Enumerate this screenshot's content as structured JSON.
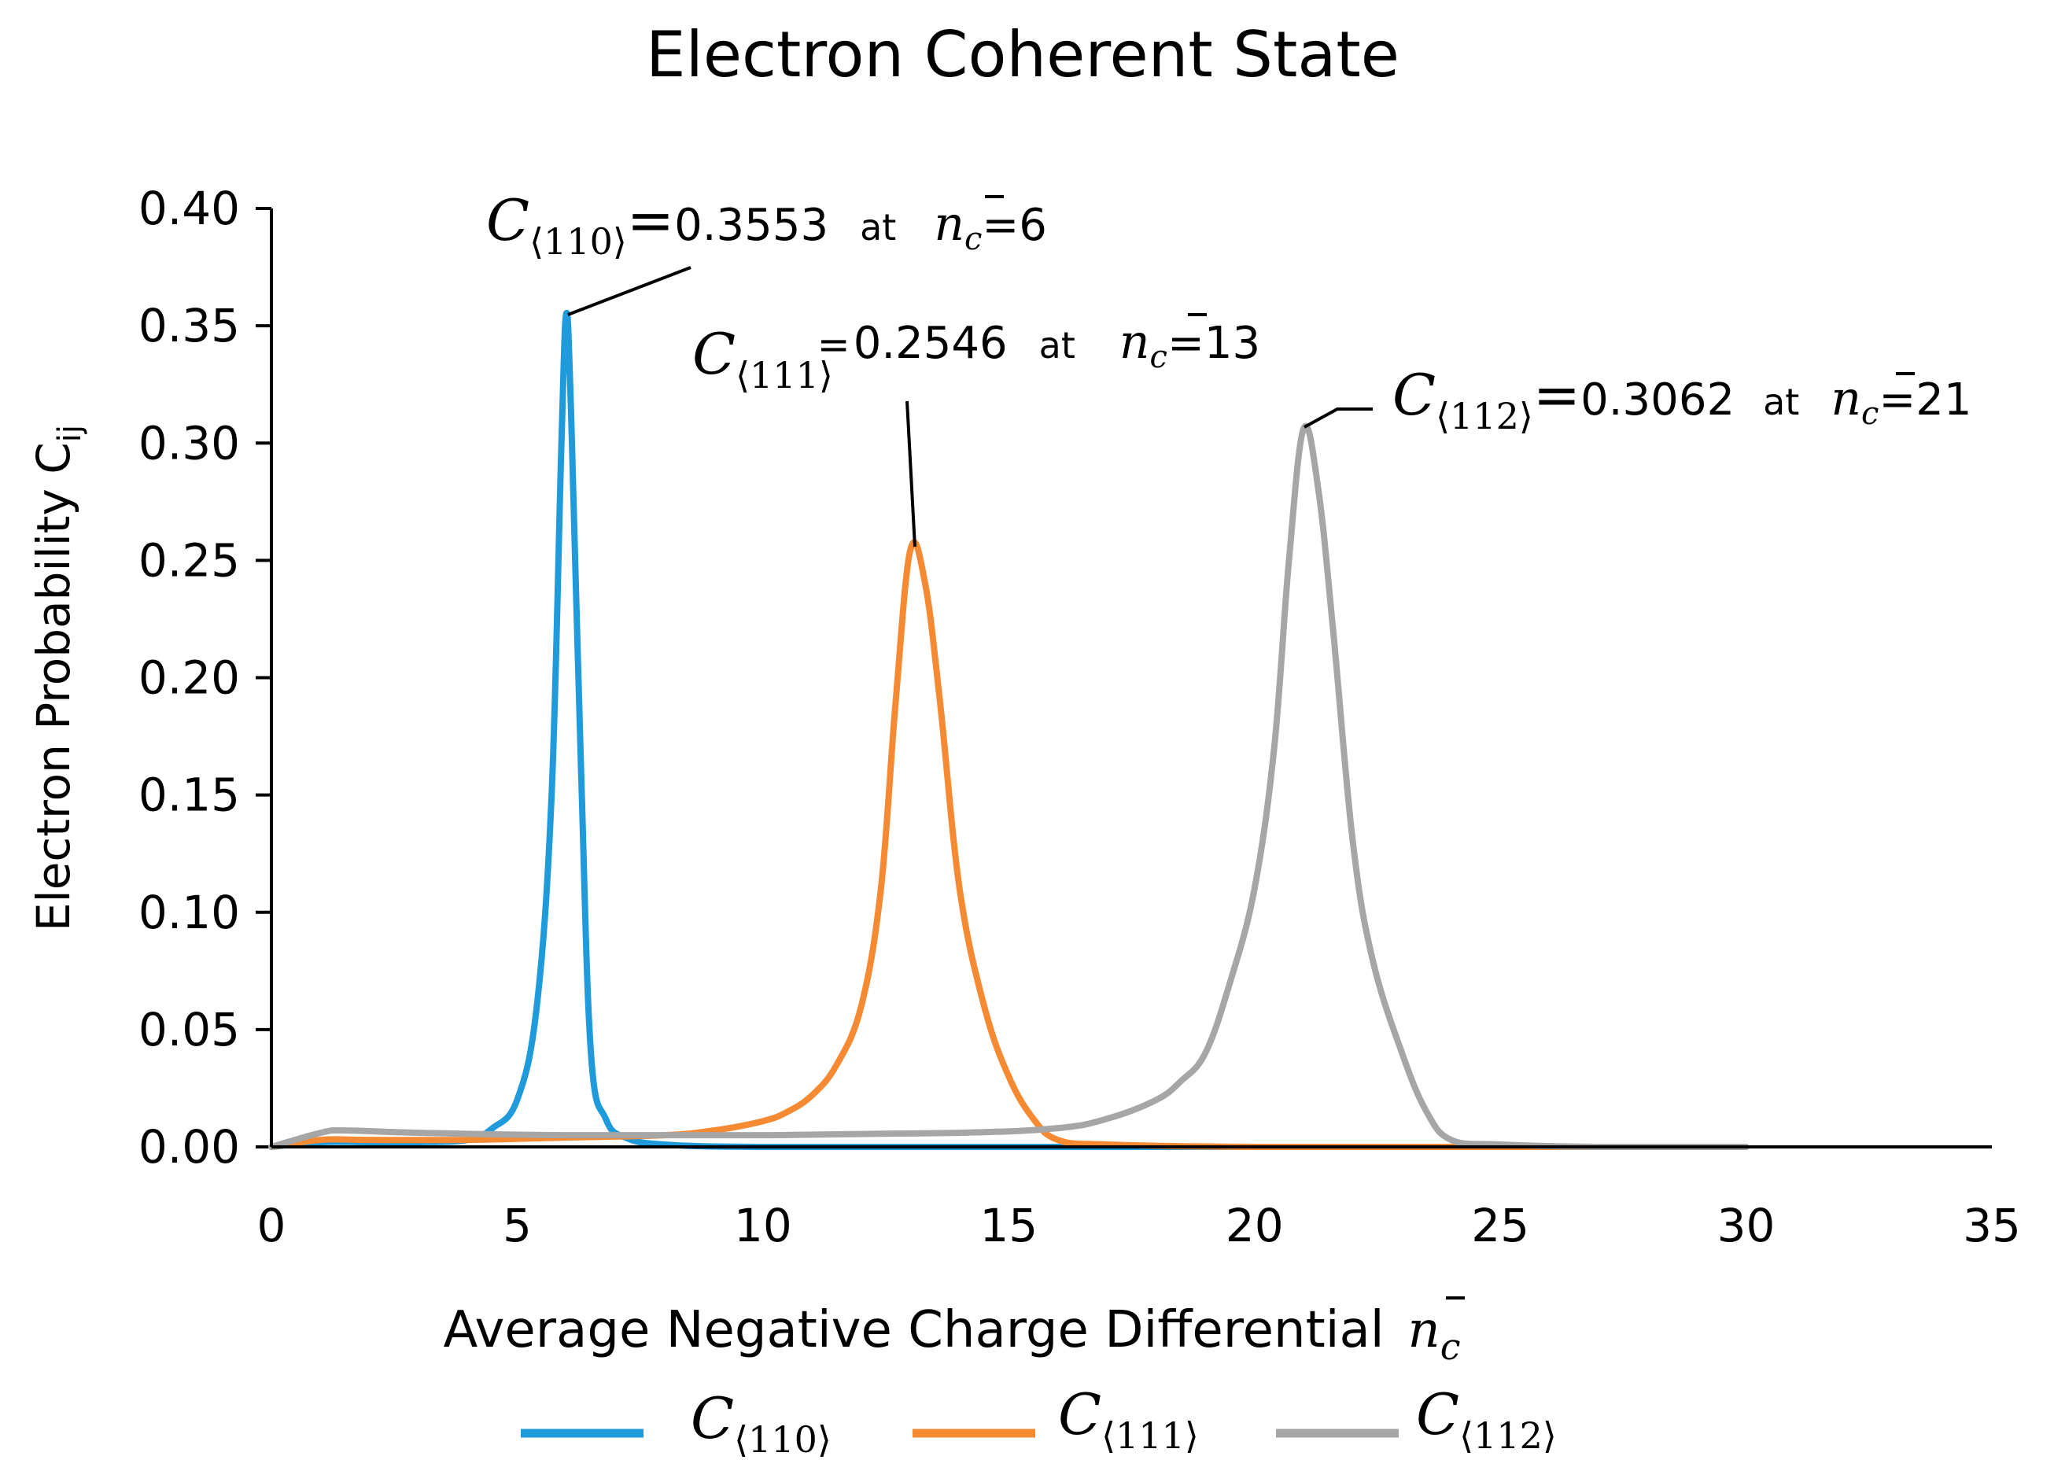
{
  "chart_data": {
    "type": "line",
    "title": "Electron Coherent State",
    "xlabel": "Average Negative Charge Differential",
    "xlabel_symbol": "n",
    "xlabel_symbol_sub": "c",
    "ylabel": "Electron Probability C",
    "ylabel_sub": "ij",
    "xlim": [
      0,
      35
    ],
    "ylim": [
      0,
      0.4
    ],
    "xticks": [
      "0",
      "5",
      "10",
      "15",
      "20",
      "25",
      "30",
      "35"
    ],
    "yticks": [
      "0.00",
      "0.05",
      "0.10",
      "0.15",
      "0.20",
      "0.25",
      "0.30",
      "0.35",
      "0.40"
    ],
    "grid": false,
    "legend_position": "bottom",
    "series": [
      {
        "name": "C⟨110⟩",
        "symbol": "C",
        "sub": "⟨110⟩",
        "color": "#1F9BDB",
        "x": [
          0,
          1,
          2,
          3,
          4,
          4.5,
          5,
          5.4,
          5.7,
          5.9,
          6.0,
          6.1,
          6.3,
          6.5,
          6.8,
          7.2,
          8,
          10,
          15,
          20,
          25,
          30
        ],
        "y": [
          0.0,
          0.002,
          0.002,
          0.002,
          0.003,
          0.008,
          0.02,
          0.06,
          0.15,
          0.3,
          0.3553,
          0.31,
          0.16,
          0.04,
          0.012,
          0.004,
          0.001,
          0.0,
          0.0,
          0.0,
          0.0,
          0.0
        ]
      },
      {
        "name": "C⟨111⟩",
        "symbol": "C",
        "sub": "⟨111⟩",
        "color": "#F58A33",
        "x": [
          0,
          1,
          2,
          4,
          6,
          8,
          9,
          10,
          10.5,
          11,
          11.5,
          12,
          12.4,
          12.7,
          13,
          13.3,
          13.6,
          14,
          14.5,
          15,
          15.5,
          16,
          17,
          20,
          25,
          30
        ],
        "y": [
          0.0,
          0.003,
          0.003,
          0.003,
          0.004,
          0.005,
          0.007,
          0.011,
          0.015,
          0.022,
          0.035,
          0.06,
          0.11,
          0.19,
          0.2546,
          0.24,
          0.19,
          0.11,
          0.06,
          0.03,
          0.012,
          0.003,
          0.001,
          0.0,
          0.0,
          0.0
        ]
      },
      {
        "name": "C⟨112⟩",
        "symbol": "C",
        "sub": "⟨112⟩",
        "color": "#A6A6A6",
        "x": [
          0,
          1,
          1.5,
          3,
          6,
          10,
          14,
          16,
          17,
          18,
          18.5,
          19,
          19.5,
          20,
          20.4,
          20.7,
          21,
          21.3,
          21.6,
          22,
          22.4,
          23,
          23.5,
          24,
          25,
          27,
          30
        ],
        "y": [
          0.0,
          0.006,
          0.007,
          0.006,
          0.005,
          0.005,
          0.006,
          0.008,
          0.012,
          0.02,
          0.028,
          0.04,
          0.07,
          0.11,
          0.17,
          0.25,
          0.3062,
          0.28,
          0.22,
          0.13,
          0.08,
          0.04,
          0.015,
          0.003,
          0.001,
          0.0,
          0.0
        ]
      }
    ],
    "annotations": [
      {
        "series_index": 0,
        "symbol": "C",
        "sub": "⟨110⟩",
        "eq": "=",
        "value": "0.3553",
        "at": "at",
        "n_symbol": "n",
        "n_sub": "c",
        "n_value": "=6"
      },
      {
        "series_index": 1,
        "symbol": "C",
        "sub": "⟨111⟩",
        "eq": "=",
        "value": "0.2546",
        "at": "at",
        "n_symbol": "n",
        "n_sub": "c",
        "n_value": "=13"
      },
      {
        "series_index": 2,
        "symbol": "C",
        "sub": "⟨112⟩",
        "eq": "=",
        "value": "0.3062",
        "at": "at",
        "n_symbol": "n",
        "n_sub": "c",
        "n_value": "=21"
      }
    ]
  }
}
